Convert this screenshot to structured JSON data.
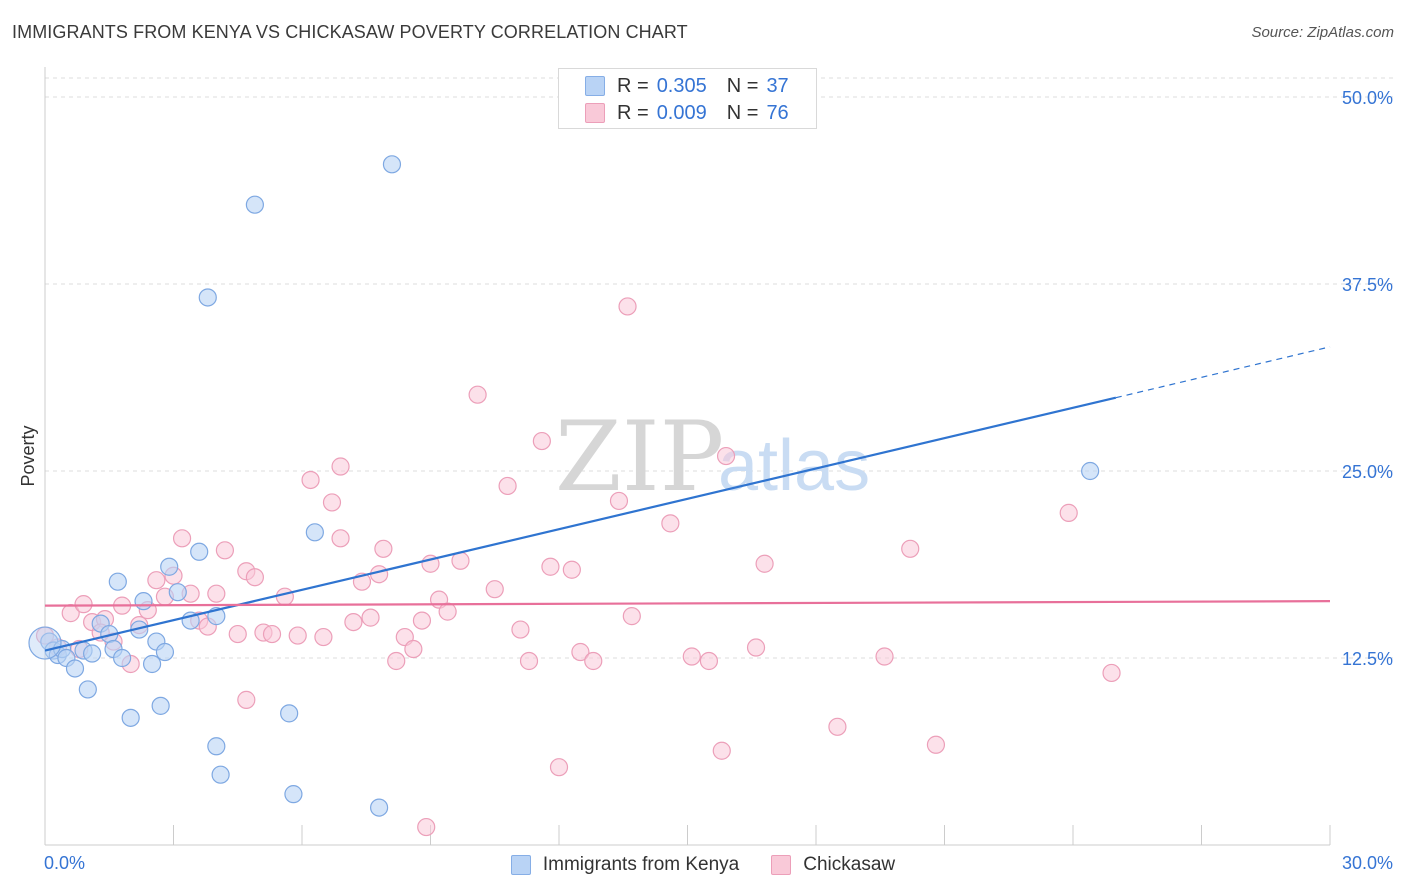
{
  "header": {
    "title": "IMMIGRANTS FROM KENYA VS CHICKASAW POVERTY CORRELATION CHART",
    "source": "Source: ZipAtlas.com"
  },
  "legend": {
    "rows": [
      {
        "r_label": "R =",
        "r_value": "0.305",
        "n_label": "N =",
        "n_value": "37"
      },
      {
        "r_label": "R =",
        "r_value": "0.009",
        "n_label": "N =",
        "n_value": "76"
      }
    ]
  },
  "bottom_legend": {
    "series_1": "Immigrants from Kenya",
    "series_2": "Chickasaw"
  },
  "watermark": {
    "part1": "ZIP",
    "part2": "atlas"
  },
  "colors": {
    "blue_fill": "#b9d3f5",
    "blue_stroke": "#7ea8e2",
    "blue_line": "#2f74d0",
    "pink_fill": "#f9c9d8",
    "pink_stroke": "#ec9fb9",
    "pink_line": "#e8709a",
    "tick_label": "#3574d4",
    "grid": "#dddddd"
  },
  "chart_data": {
    "type": "scatter",
    "title": "IMMIGRANTS FROM KENYA VS CHICKASAW POVERTY CORRELATION CHART",
    "xlabel": "",
    "ylabel": "Poverty",
    "xlim": [
      0,
      30
    ],
    "ylim": [
      0,
      52.5
    ],
    "x_tick_labels": [
      "0.0%",
      "30.0%"
    ],
    "y_tick_values": [
      12.5,
      25.0,
      37.5,
      50.0
    ],
    "y_tick_labels": [
      "12.5%",
      "25.0%",
      "37.5%",
      "50.0%"
    ],
    "grid": "horizontal dashed",
    "legend_position": "top-center",
    "series": [
      {
        "name": "Immigrants from Kenya",
        "r": 0.305,
        "n": 37,
        "trend": {
          "x": [
            0.0,
            25.0
          ],
          "y": [
            13.0,
            29.9
          ],
          "extended_to": {
            "x": 30.0,
            "y": 33.3
          }
        },
        "points": [
          [
            0.1,
            13.6
          ],
          [
            0.2,
            13.0
          ],
          [
            0.3,
            12.7
          ],
          [
            0.4,
            13.1
          ],
          [
            0.5,
            12.5
          ],
          [
            0.7,
            11.8
          ],
          [
            0.9,
            13.0
          ],
          [
            1.1,
            12.8
          ],
          [
            1.3,
            14.8
          ],
          [
            1.5,
            14.1
          ],
          [
            1.6,
            13.1
          ],
          [
            1.8,
            12.5
          ],
          [
            1.7,
            17.6
          ],
          [
            2.2,
            14.4
          ],
          [
            2.3,
            16.3
          ],
          [
            2.5,
            12.1
          ],
          [
            2.6,
            13.6
          ],
          [
            2.8,
            12.9
          ],
          [
            2.9,
            18.6
          ],
          [
            3.1,
            16.9
          ],
          [
            3.4,
            15.0
          ],
          [
            3.6,
            19.6
          ],
          [
            3.8,
            36.6
          ],
          [
            4.0,
            15.3
          ],
          [
            4.9,
            42.8
          ],
          [
            1.0,
            10.4
          ],
          [
            2.0,
            8.5
          ],
          [
            2.7,
            9.3
          ],
          [
            4.0,
            6.6
          ],
          [
            4.1,
            4.7
          ],
          [
            5.7,
            8.8
          ],
          [
            6.3,
            20.9
          ],
          [
            5.8,
            3.4
          ],
          [
            8.1,
            45.5
          ],
          [
            7.8,
            2.5
          ],
          [
            24.4,
            25.0
          ],
          [
            0.0,
            13.5
          ]
        ]
      },
      {
        "name": "Chickasaw",
        "r": 0.009,
        "n": 76,
        "trend": {
          "x": [
            0.0,
            30.0
          ],
          "y": [
            16.0,
            16.3
          ]
        },
        "points": [
          [
            0.0,
            14.0
          ],
          [
            0.3,
            13.2
          ],
          [
            0.6,
            15.5
          ],
          [
            0.9,
            16.1
          ],
          [
            1.1,
            14.9
          ],
          [
            1.4,
            15.1
          ],
          [
            1.6,
            13.6
          ],
          [
            1.8,
            16.0
          ],
          [
            2.0,
            12.1
          ],
          [
            2.2,
            14.7
          ],
          [
            2.4,
            15.7
          ],
          [
            2.6,
            17.7
          ],
          [
            2.8,
            16.6
          ],
          [
            3.0,
            18.0
          ],
          [
            3.2,
            20.5
          ],
          [
            3.4,
            16.8
          ],
          [
            3.6,
            15.0
          ],
          [
            3.8,
            14.6
          ],
          [
            4.0,
            16.8
          ],
          [
            4.2,
            19.7
          ],
          [
            4.5,
            14.1
          ],
          [
            4.7,
            18.3
          ],
          [
            4.9,
            17.9
          ],
          [
            5.1,
            14.2
          ],
          [
            5.3,
            14.1
          ],
          [
            5.6,
            16.6
          ],
          [
            5.9,
            14.0
          ],
          [
            6.2,
            24.4
          ],
          [
            6.5,
            13.9
          ],
          [
            6.7,
            22.9
          ],
          [
            6.9,
            25.3
          ],
          [
            6.9,
            20.5
          ],
          [
            7.2,
            14.9
          ],
          [
            7.4,
            17.6
          ],
          [
            7.6,
            15.2
          ],
          [
            7.8,
            18.1
          ],
          [
            7.9,
            19.8
          ],
          [
            8.2,
            12.3
          ],
          [
            8.4,
            13.9
          ],
          [
            8.6,
            13.1
          ],
          [
            8.8,
            15.0
          ],
          [
            9.0,
            18.8
          ],
          [
            9.2,
            16.4
          ],
          [
            9.4,
            15.6
          ],
          [
            9.7,
            19.0
          ],
          [
            10.1,
            30.1
          ],
          [
            10.5,
            17.1
          ],
          [
            10.8,
            24.0
          ],
          [
            11.1,
            14.4
          ],
          [
            11.3,
            12.3
          ],
          [
            11.8,
            18.6
          ],
          [
            11.6,
            27.0
          ],
          [
            12.0,
            5.2
          ],
          [
            12.3,
            18.4
          ],
          [
            12.5,
            12.9
          ],
          [
            12.8,
            12.3
          ],
          [
            13.4,
            23.0
          ],
          [
            13.6,
            36.0
          ],
          [
            13.7,
            15.3
          ],
          [
            14.6,
            21.5
          ],
          [
            15.1,
            12.6
          ],
          [
            15.5,
            12.3
          ],
          [
            15.8,
            6.3
          ],
          [
            15.9,
            26.0
          ],
          [
            16.6,
            13.2
          ],
          [
            16.8,
            18.8
          ],
          [
            18.5,
            7.9
          ],
          [
            19.6,
            12.6
          ],
          [
            20.2,
            19.8
          ],
          [
            20.8,
            6.7
          ],
          [
            23.9,
            22.2
          ],
          [
            24.9,
            11.5
          ],
          [
            4.7,
            9.7
          ],
          [
            8.9,
            1.2
          ],
          [
            1.3,
            14.2
          ],
          [
            0.8,
            13.1
          ]
        ]
      }
    ]
  }
}
